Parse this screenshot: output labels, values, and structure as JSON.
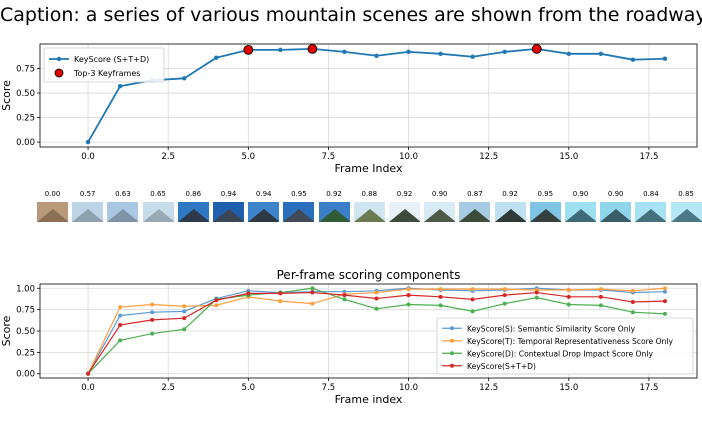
{
  "caption": "Caption: a series of various mountain scenes are shown from the roadways",
  "chart_data": [
    {
      "type": "line",
      "title": "",
      "xlabel": "Frame Index",
      "ylabel": "Score",
      "xlim": [
        -1.5,
        19.0
      ],
      "ylim": [
        -0.05,
        1.0
      ],
      "xticks": [
        0.0,
        2.5,
        5.0,
        7.5,
        10.0,
        12.5,
        15.0,
        17.5
      ],
      "yticks": [
        0.0,
        0.25,
        0.5,
        0.75
      ],
      "grid": true,
      "legend_position": "top-left",
      "x": [
        0,
        1,
        2,
        3,
        4,
        5,
        6,
        7,
        8,
        9,
        10,
        11,
        12,
        13,
        14,
        15,
        16,
        17,
        18
      ],
      "series": [
        {
          "name": "KeyScore (S+T+D)",
          "color": "#1f77b4",
          "values": [
            0.0,
            0.57,
            0.63,
            0.65,
            0.86,
            0.94,
            0.94,
            0.95,
            0.92,
            0.88,
            0.92,
            0.9,
            0.87,
            0.92,
            0.95,
            0.9,
            0.9,
            0.84,
            0.85
          ]
        }
      ],
      "highlight": {
        "name": "Top-3 Keyframes",
        "color": "#dd0000",
        "x": [
          5,
          7,
          14
        ]
      }
    },
    {
      "type": "line",
      "title": "Per-frame scoring components",
      "xlabel": "Frame index",
      "ylabel": "Score",
      "xlim": [
        -1.5,
        19.0
      ],
      "ylim": [
        -0.05,
        1.05
      ],
      "xticks": [
        0.0,
        2.5,
        5.0,
        7.5,
        10.0,
        12.5,
        15.0,
        17.5
      ],
      "yticks": [
        0.0,
        0.25,
        0.5,
        0.75,
        1.0
      ],
      "grid": true,
      "legend_position": "bottom-right",
      "x": [
        0,
        1,
        2,
        3,
        4,
        5,
        6,
        7,
        8,
        9,
        10,
        11,
        12,
        13,
        14,
        15,
        16,
        17,
        18
      ],
      "series": [
        {
          "name": "KeyScore(S): Semantic Similarity Score Only",
          "color": "#5b9bd5",
          "values": [
            0.0,
            0.68,
            0.72,
            0.73,
            0.88,
            0.97,
            0.95,
            0.96,
            0.96,
            0.97,
            1.0,
            0.98,
            0.97,
            0.98,
            1.0,
            0.98,
            0.98,
            0.95,
            0.96
          ]
        },
        {
          "name": "KeyScore(T): Temporal Representativeness Score Only",
          "color": "#ff9f40",
          "values": [
            0.0,
            0.78,
            0.81,
            0.79,
            0.8,
            0.9,
            0.85,
            0.82,
            0.93,
            0.95,
            0.99,
            0.99,
            0.99,
            0.99,
            0.98,
            0.98,
            0.99,
            0.97,
            1.0
          ]
        },
        {
          "name": "KeyScore(D): Contextual Drop Impact Score Only",
          "color": "#4caf50",
          "values": [
            0.0,
            0.39,
            0.47,
            0.52,
            0.87,
            0.92,
            0.95,
            1.0,
            0.87,
            0.76,
            0.81,
            0.8,
            0.73,
            0.82,
            0.89,
            0.81,
            0.8,
            0.72,
            0.7
          ]
        },
        {
          "name": "KeyScore(S+T+D)",
          "color": "#d62728",
          "values": [
            0.0,
            0.57,
            0.63,
            0.65,
            0.86,
            0.94,
            0.94,
            0.95,
            0.92,
            0.88,
            0.92,
            0.9,
            0.87,
            0.92,
            0.95,
            0.9,
            0.9,
            0.84,
            0.85
          ]
        }
      ]
    }
  ],
  "thumbnails": {
    "scores": [
      "0.00",
      "0.57",
      "0.63",
      "0.65",
      "0.86",
      "0.94",
      "0.94",
      "0.95",
      "0.92",
      "0.88",
      "0.92",
      "0.90",
      "0.87",
      "0.92",
      "0.95",
      "0.90",
      "0.90",
      "0.84",
      "0.85"
    ],
    "colors": [
      {
        "sky": "#b89a7a",
        "mtn": "#8a6f55"
      },
      {
        "sky": "#bcd4e6",
        "mtn": "#8fa0ae"
      },
      {
        "sky": "#a9c7e3",
        "mtn": "#7e93a6"
      },
      {
        "sky": "#c6dceb",
        "mtn": "#9aa8b4"
      },
      {
        "sky": "#2f78c4",
        "mtn": "#2c3a4c"
      },
      {
        "sky": "#1f5fae",
        "mtn": "#3a4656"
      },
      {
        "sky": "#3c84cc",
        "mtn": "#2e3845"
      },
      {
        "sky": "#2a6fbc",
        "mtn": "#404a58"
      },
      {
        "sky": "#3b7fc8",
        "mtn": "#2f5b36"
      },
      {
        "sky": "#cfe5f0",
        "mtn": "#6b7a50"
      },
      {
        "sky": "#e7f1f7",
        "mtn": "#3f4a3a"
      },
      {
        "sky": "#d8eaf4",
        "mtn": "#4e5a45"
      },
      {
        "sky": "#a8cbe4",
        "mtn": "#3c4c38"
      },
      {
        "sky": "#bfe0f0",
        "mtn": "#2f3a36"
      },
      {
        "sky": "#7fc4e4",
        "mtn": "#34403e"
      },
      {
        "sky": "#9fe0f0",
        "mtn": "#3f6a78"
      },
      {
        "sky": "#8fd6ec",
        "mtn": "#3a5c68"
      },
      {
        "sky": "#a6e2f2",
        "mtn": "#46707c"
      },
      {
        "sky": "#b4e8f4",
        "mtn": "#4a7884"
      }
    ]
  }
}
